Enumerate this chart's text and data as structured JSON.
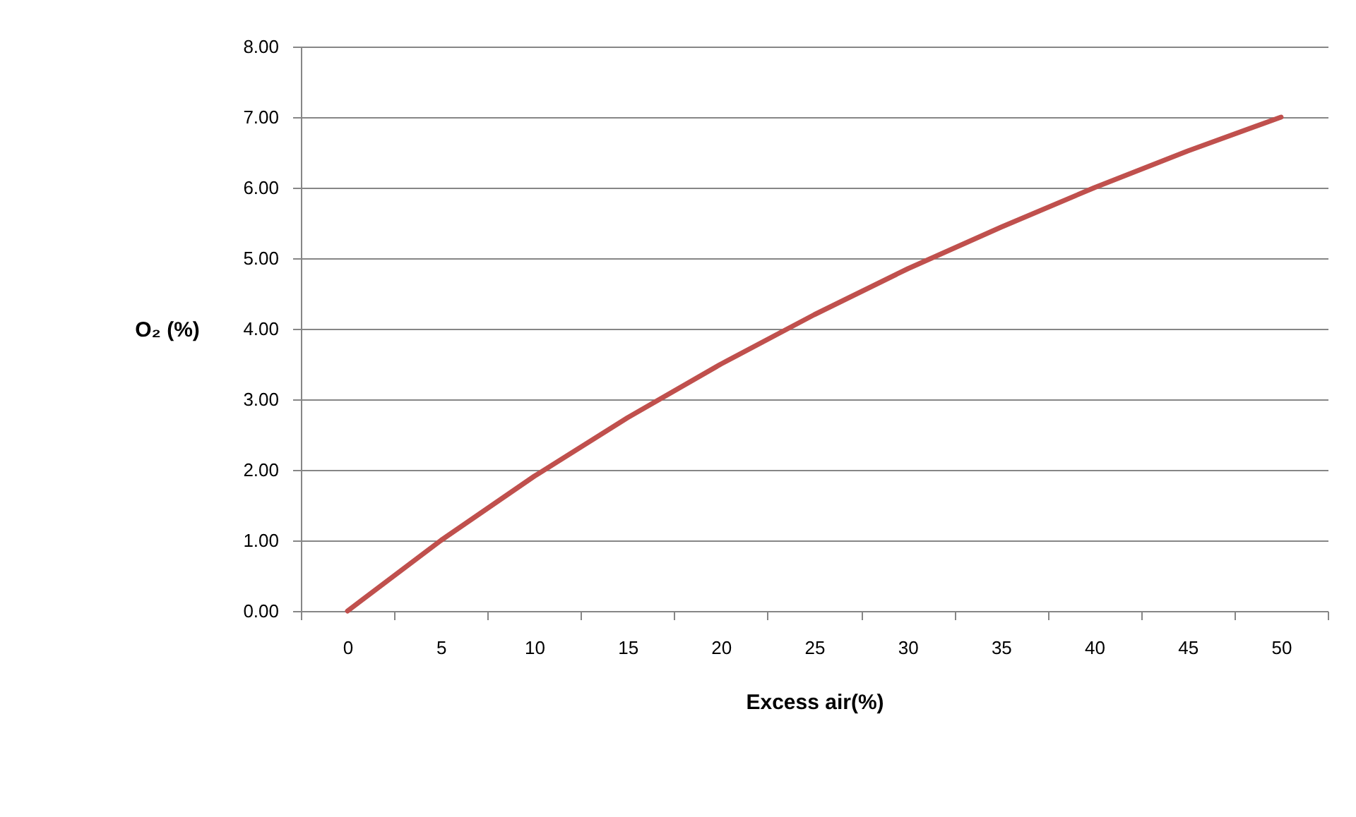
{
  "chart_data": {
    "type": "line",
    "xlabel": "Excess air(%)",
    "ylabel": "O₂ (%)",
    "categories": [
      "0",
      "5",
      "10",
      "15",
      "20",
      "25",
      "30",
      "35",
      "40",
      "45",
      "50"
    ],
    "series": [
      {
        "color": "#c0504d",
        "values": [
          0,
          1.0,
          1.91,
          2.74,
          3.5,
          4.2,
          4.85,
          5.44,
          6.0,
          6.52,
          7.0
        ]
      }
    ],
    "ylim": [
      0,
      8
    ],
    "yticks": [
      {
        "value": 0,
        "label": "0.00"
      },
      {
        "value": 1,
        "label": "1.00"
      },
      {
        "value": 2,
        "label": "2.00"
      },
      {
        "value": 3,
        "label": "3.00"
      },
      {
        "value": 4,
        "label": "4.00"
      },
      {
        "value": 5,
        "label": "5.00"
      },
      {
        "value": 6,
        "label": "6.00"
      },
      {
        "value": 7,
        "label": "7.00"
      },
      {
        "value": 8,
        "label": "8.00"
      }
    ],
    "grid": "y",
    "legend": false,
    "marker": "none",
    "line_style": "solid"
  }
}
